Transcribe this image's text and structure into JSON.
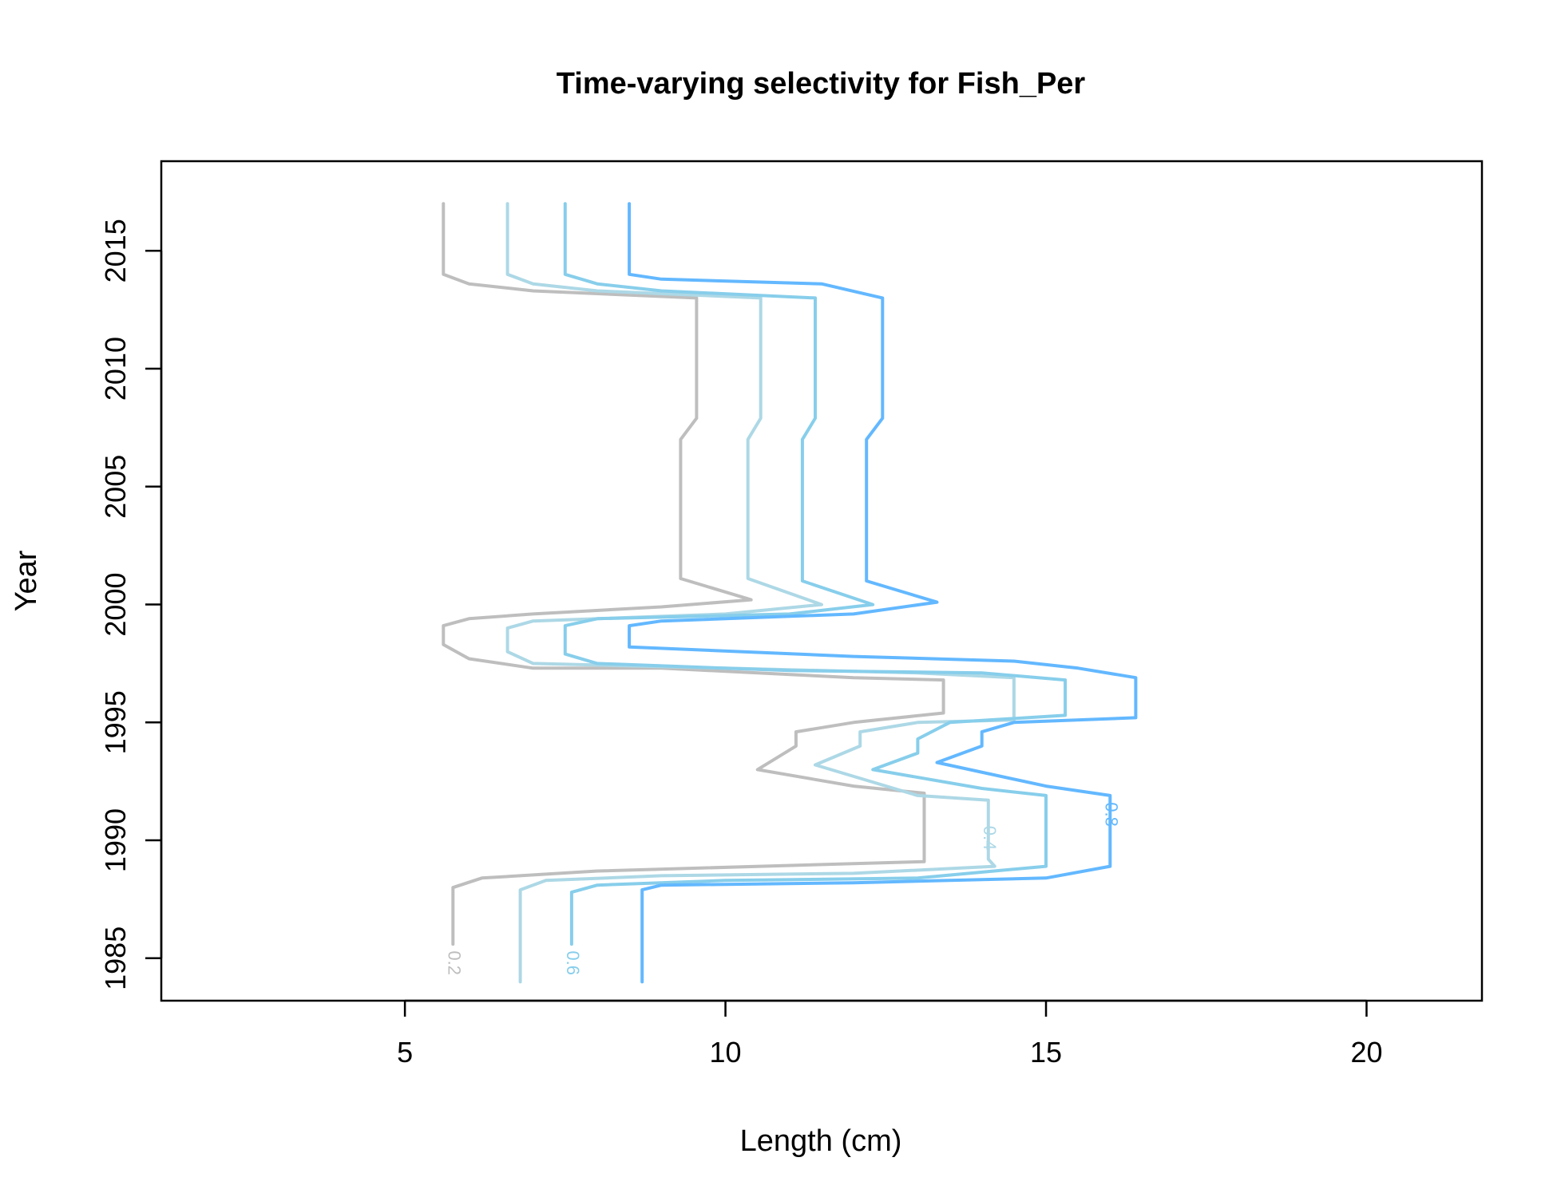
{
  "chart_data": {
    "type": "line",
    "title": "Time-varying selectivity for Fish_Per",
    "xlabel": "Length (cm)",
    "ylabel": "Year",
    "xlim": [
      1.2,
      21.8
    ],
    "ylim": [
      1983.2,
      2018.8
    ],
    "xticks": [
      5,
      10,
      15,
      20
    ],
    "yticks": [
      1985,
      1990,
      1995,
      2000,
      2005,
      2010,
      2015
    ],
    "grid": false,
    "legend": "none",
    "series": [
      {
        "label": "0.2",
        "color": "#bebebe",
        "label_at": [
          5.75,
          1984.8
        ],
        "points": [
          [
            5.75,
            1985.6
          ],
          [
            5.75,
            1988
          ],
          [
            6.2,
            1988.4
          ],
          [
            8,
            1988.7
          ],
          [
            13.1,
            1989.1
          ],
          [
            13.1,
            1992
          ],
          [
            12,
            1992.3
          ],
          [
            10.5,
            1993
          ],
          [
            11.1,
            1994
          ],
          [
            11.1,
            1994.6
          ],
          [
            12,
            1995
          ],
          [
            13.4,
            1995.4
          ],
          [
            13.4,
            1996.8
          ],
          [
            12,
            1996.9
          ],
          [
            9,
            1997.3
          ],
          [
            7,
            1997.3
          ],
          [
            6,
            1997.7
          ],
          [
            5.6,
            1998.3
          ],
          [
            5.6,
            1999.1
          ],
          [
            6,
            1999.4
          ],
          [
            7,
            1999.6
          ],
          [
            9,
            1999.9
          ],
          [
            10.4,
            2000.2
          ],
          [
            9.3,
            2001.1
          ],
          [
            9.3,
            2007
          ],
          [
            9.55,
            2007.9
          ],
          [
            9.55,
            2013
          ],
          [
            7,
            2013.3
          ],
          [
            6,
            2013.6
          ],
          [
            5.6,
            2014
          ],
          [
            5.6,
            2017
          ]
        ]
      },
      {
        "label": "0.4",
        "color": "#add8e6",
        "label_at": [
          14.1,
          1990.1
        ],
        "points": [
          [
            6.8,
            1984
          ],
          [
            6.8,
            1987.9
          ],
          [
            7.2,
            1988.3
          ],
          [
            9,
            1988.5
          ],
          [
            12,
            1988.6
          ],
          [
            14.2,
            1988.9
          ],
          [
            14.1,
            1989.2
          ],
          [
            14.1,
            1990.6
          ],
          [
            14.1,
            1991.7
          ],
          [
            13,
            1991.9
          ],
          [
            11.4,
            1993.2
          ],
          [
            12.1,
            1994
          ],
          [
            12.1,
            1994.6
          ],
          [
            13,
            1995
          ],
          [
            14.5,
            1995.1
          ],
          [
            14.5,
            1996.9
          ],
          [
            13,
            1997.1
          ],
          [
            10,
            1997.3
          ],
          [
            7,
            1997.5
          ],
          [
            6.6,
            1998
          ],
          [
            6.6,
            1999
          ],
          [
            7,
            1999.3
          ],
          [
            10,
            1999.6
          ],
          [
            11.5,
            2000
          ],
          [
            10.35,
            2001.1
          ],
          [
            10.35,
            2007
          ],
          [
            10.55,
            2007.9
          ],
          [
            10.55,
            2013
          ],
          [
            8,
            2013.3
          ],
          [
            7,
            2013.6
          ],
          [
            6.6,
            2014
          ],
          [
            6.6,
            2017
          ]
        ]
      },
      {
        "label": "0.6",
        "color": "#87ceeb",
        "label_at": [
          7.6,
          1984.8
        ],
        "points": [
          [
            7.6,
            1985.6
          ],
          [
            7.6,
            1987.8
          ],
          [
            8,
            1988.1
          ],
          [
            10,
            1988.3
          ],
          [
            13,
            1988.4
          ],
          [
            15,
            1988.9
          ],
          [
            15,
            1991.9
          ],
          [
            14,
            1992.2
          ],
          [
            12.3,
            1993
          ],
          [
            13,
            1993.7
          ],
          [
            13,
            1994.3
          ],
          [
            13.5,
            1995
          ],
          [
            15.3,
            1995.3
          ],
          [
            15.3,
            1996.8
          ],
          [
            14,
            1997.1
          ],
          [
            11,
            1997.2
          ],
          [
            8,
            1997.5
          ],
          [
            7.5,
            1997.9
          ],
          [
            7.5,
            1999.1
          ],
          [
            8,
            1999.4
          ],
          [
            11,
            1999.6
          ],
          [
            12.3,
            2000
          ],
          [
            11.2,
            2001
          ],
          [
            11.2,
            2007
          ],
          [
            11.4,
            2007.9
          ],
          [
            11.4,
            2013
          ],
          [
            9,
            2013.3
          ],
          [
            8,
            2013.6
          ],
          [
            7.5,
            2014
          ],
          [
            7.5,
            2017
          ]
        ]
      },
      {
        "label": "0.8",
        "color": "#63b8ff",
        "label_at": [
          16,
          1991.1
        ],
        "points": [
          [
            8.7,
            1984
          ],
          [
            8.7,
            1987.9
          ],
          [
            9,
            1988.1
          ],
          [
            12,
            1988.2
          ],
          [
            15,
            1988.4
          ],
          [
            16,
            1988.9
          ],
          [
            16,
            1990.3
          ],
          [
            16,
            1991.9
          ],
          [
            15,
            1992.3
          ],
          [
            13.3,
            1993.3
          ],
          [
            14,
            1994
          ],
          [
            14,
            1994.6
          ],
          [
            14.5,
            1995
          ],
          [
            16.4,
            1995.2
          ],
          [
            16.4,
            1996.9
          ],
          [
            15.5,
            1997.3
          ],
          [
            14.5,
            1997.6
          ],
          [
            12,
            1997.8
          ],
          [
            8.5,
            1998.2
          ],
          [
            8.5,
            1999.1
          ],
          [
            9,
            1999.3
          ],
          [
            12,
            1999.6
          ],
          [
            13.3,
            2000.1
          ],
          [
            12.2,
            2001
          ],
          [
            12.2,
            2007
          ],
          [
            12.45,
            2007.9
          ],
          [
            12.45,
            2013
          ],
          [
            11.5,
            2013.6
          ],
          [
            9,
            2013.8
          ],
          [
            8.5,
            2014
          ],
          [
            8.5,
            2017
          ]
        ]
      }
    ]
  }
}
